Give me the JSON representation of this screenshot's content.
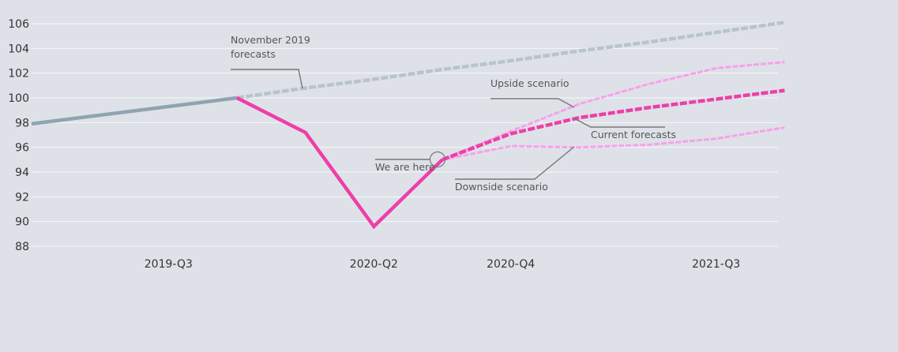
{
  "chart_data": {
    "type": "line",
    "title": "",
    "xlabel": "",
    "ylabel": "",
    "x": [
      "2019-Q1",
      "2019-Q2",
      "2019-Q3",
      "2019-Q4",
      "2020-Q1",
      "2020-Q2",
      "2020-Q3",
      "2020-Q4",
      "2021-Q1",
      "2021-Q2",
      "2021-Q3",
      "2021-Q4"
    ],
    "x_tick_labels": [
      "2019-Q3",
      "2020-Q2",
      "2020-Q4",
      "2021-Q3"
    ],
    "ylim": [
      88,
      106
    ],
    "y_ticks": [
      88,
      90,
      92,
      94,
      96,
      98,
      100,
      102,
      104,
      106
    ],
    "grid": true,
    "series": [
      {
        "key": "history",
        "color": "#8fa3b0",
        "style": "solid",
        "points": [
          [
            "2019-Q1",
            97.9
          ],
          [
            "2019-Q2",
            98.6
          ],
          [
            "2019-Q3",
            99.3
          ],
          [
            "2019-Q4",
            100.0
          ]
        ]
      },
      {
        "key": "november",
        "color": "#b9c3cc",
        "style": "dashed",
        "points": [
          [
            "2019-Q4",
            100.0
          ],
          [
            "2020-Q1",
            100.8
          ],
          [
            "2020-Q2",
            101.5
          ],
          [
            "2020-Q3",
            102.3
          ],
          [
            "2020-Q4",
            103.0
          ],
          [
            "2021-Q1",
            103.8
          ],
          [
            "2021-Q2",
            104.5
          ],
          [
            "2021-Q3",
            105.3
          ],
          [
            "2021-Q4",
            106.1
          ]
        ]
      },
      {
        "key": "actual",
        "color": "#ee3fa7",
        "style": "solid",
        "points": [
          [
            "2019-Q4",
            100.0
          ],
          [
            "2020-Q1",
            97.2
          ],
          [
            "2020-Q2",
            89.6
          ],
          [
            "2020-Q3",
            95.0
          ]
        ]
      },
      {
        "key": "upside",
        "color": "#f9a0ea",
        "style": "dashed",
        "points": [
          [
            "2020-Q3",
            95.0
          ],
          [
            "2020-Q4",
            97.3
          ],
          [
            "2021-Q1",
            99.5
          ],
          [
            "2021-Q2",
            101.1
          ],
          [
            "2021-Q3",
            102.4
          ],
          [
            "2021-Q4",
            102.9
          ]
        ]
      },
      {
        "key": "current",
        "color": "#ee3fa7",
        "style": "dashed",
        "points": [
          [
            "2020-Q3",
            95.0
          ],
          [
            "2020-Q4",
            97.1
          ],
          [
            "2021-Q1",
            98.4
          ],
          [
            "2021-Q2",
            99.2
          ],
          [
            "2021-Q3",
            99.9
          ],
          [
            "2021-Q4",
            100.6
          ]
        ]
      },
      {
        "key": "downside",
        "color": "#f9a0ea",
        "style": "dashed",
        "points": [
          [
            "2020-Q3",
            95.0
          ],
          [
            "2020-Q4",
            96.1
          ],
          [
            "2021-Q1",
            96.0
          ],
          [
            "2021-Q2",
            96.2
          ],
          [
            "2021-Q3",
            96.7
          ],
          [
            "2021-Q4",
            97.6
          ]
        ]
      }
    ],
    "annotations": [
      {
        "key": "november",
        "lines": [
          "November 2019",
          "forecasts"
        ]
      },
      {
        "key": "upside",
        "lines": [
          "Upside scenario"
        ]
      },
      {
        "key": "current",
        "lines": [
          "Current forecasts"
        ]
      },
      {
        "key": "here",
        "lines": [
          "We are here"
        ]
      },
      {
        "key": "downside",
        "lines": [
          "Downside scenario"
        ]
      }
    ]
  }
}
